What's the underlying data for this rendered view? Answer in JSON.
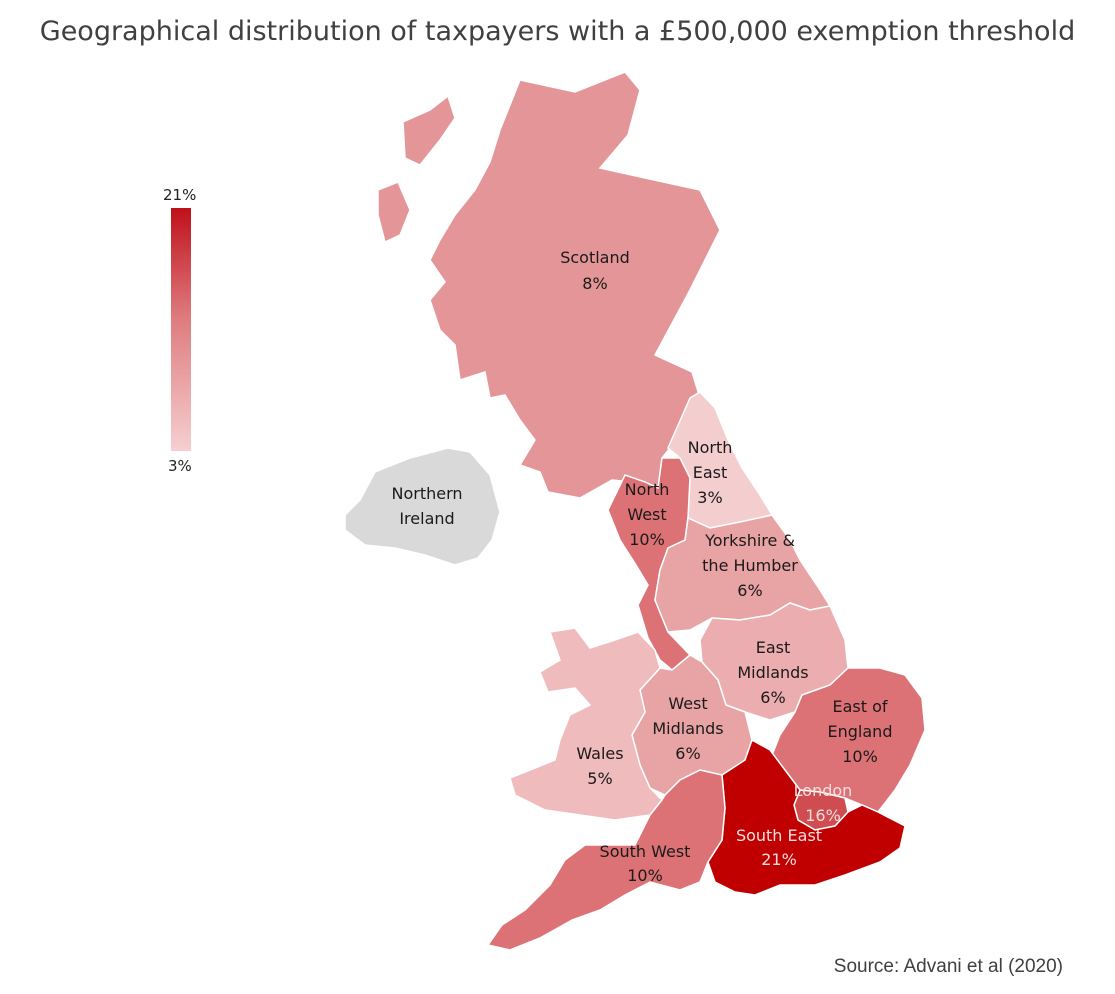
{
  "title": "Geographical distribution of taxpayers with a £500,000 exemption threshold",
  "source": "Source: Advani et al (2020)",
  "legend": {
    "max_label": "21%",
    "min_label": "3%",
    "max_color": "#c0101a",
    "min_color": "#f6cfd0"
  },
  "regions": {
    "scotland": {
      "name": "Scotland",
      "value": "8%",
      "color": "#e49597"
    },
    "northern_ireland": {
      "line1": "Northern",
      "line2": "Ireland",
      "color": "#d9d9d9"
    },
    "north_east": {
      "line1": "North",
      "line2": "East",
      "value": "3%",
      "color": "#f4cdce"
    },
    "north_west": {
      "line1": "North",
      "line2": "West",
      "value": "10%",
      "color": "#dc7275"
    },
    "yorkshire": {
      "line1": "Yorkshire &",
      "line2": "the Humber",
      "value": "6%",
      "color": "#e8a3a5"
    },
    "east_midlands": {
      "line1": "East",
      "line2": "Midlands",
      "value": "6%",
      "color": "#ebadaf"
    },
    "west_midlands": {
      "line1": "West",
      "line2": "Midlands",
      "value": "6%",
      "color": "#e8a3a5"
    },
    "wales": {
      "name": "Wales",
      "value": "5%",
      "color": "#efbbbc"
    },
    "east_of_england": {
      "line1": "East of",
      "line2": "England",
      "value": "10%",
      "color": "#dc7275"
    },
    "london": {
      "name": "London",
      "value": "16%",
      "color": "#cf4d50"
    },
    "south_east": {
      "name": "South East",
      "value": "21%",
      "color": "#c00000"
    },
    "south_west": {
      "name": "South West",
      "value": "10%",
      "color": "#dc7275"
    }
  }
}
